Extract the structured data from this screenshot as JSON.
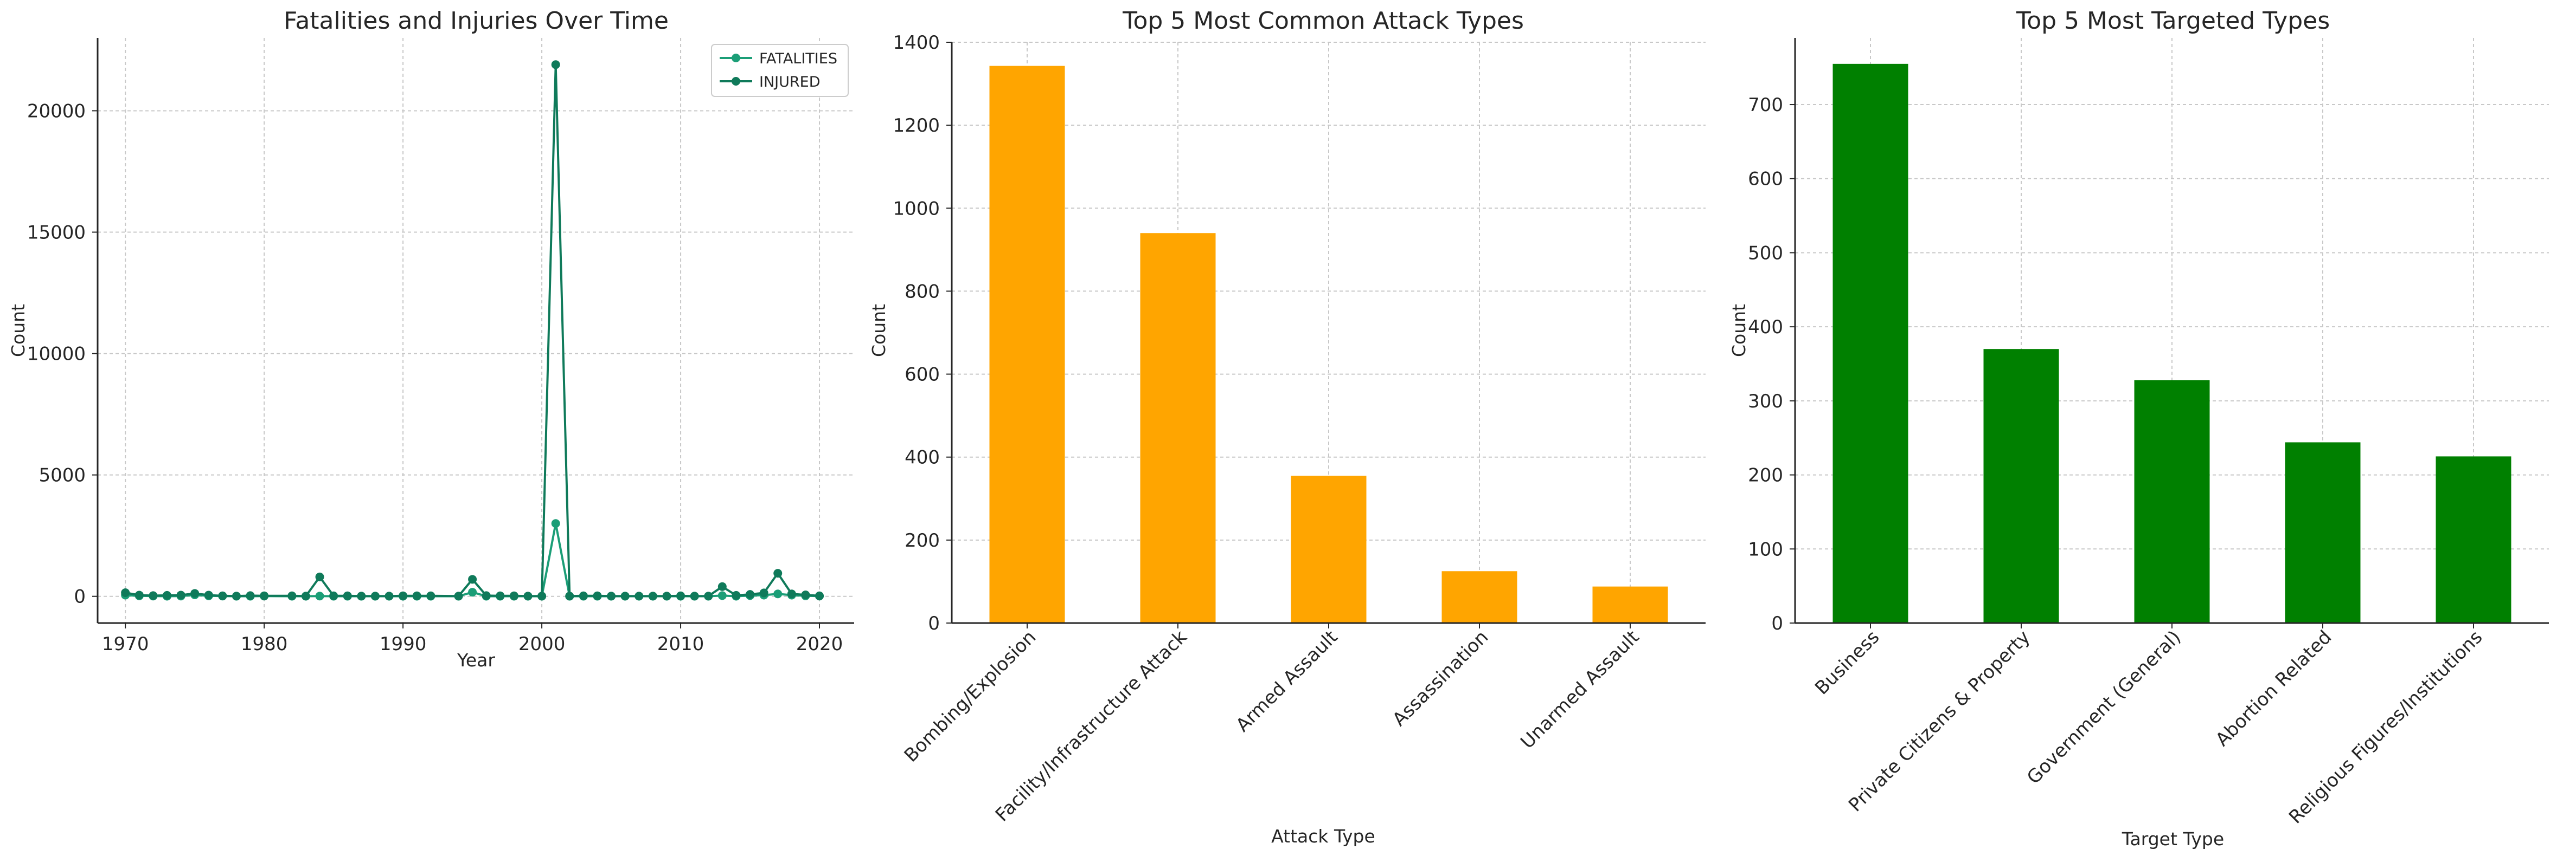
{
  "chart_data": [
    {
      "type": "line",
      "title": "Fatalities and Injuries Over Time",
      "xlabel": "Year",
      "ylabel": "Count",
      "xlim": [
        1968,
        2022.5
      ],
      "ylim": [
        -1100,
        23000
      ],
      "xticks": [
        1970,
        1980,
        1990,
        2000,
        2010,
        2020
      ],
      "yticks": [
        0,
        5000,
        10000,
        15000,
        20000
      ],
      "grid": true,
      "legend": "top-right",
      "x": [
        1970,
        1971,
        1972,
        1973,
        1974,
        1975,
        1976,
        1977,
        1978,
        1979,
        1980,
        1982,
        1983,
        1984,
        1985,
        1986,
        1987,
        1988,
        1989,
        1990,
        1991,
        1992,
        1994,
        1995,
        1996,
        1997,
        1998,
        1999,
        2000,
        2001,
        2002,
        2003,
        2004,
        2005,
        2006,
        2007,
        2008,
        2009,
        2010,
        2011,
        2012,
        2013,
        2014,
        2015,
        2016,
        2017,
        2018,
        2019,
        2020
      ],
      "series": [
        {
          "name": "FATALITIES",
          "color": "#1b9e77",
          "values": [
            50,
            20,
            10,
            5,
            10,
            60,
            20,
            10,
            5,
            5,
            10,
            5,
            5,
            10,
            5,
            5,
            5,
            5,
            5,
            5,
            5,
            5,
            5,
            170,
            5,
            5,
            5,
            5,
            5,
            3000,
            5,
            5,
            5,
            5,
            5,
            5,
            5,
            5,
            5,
            5,
            5,
            30,
            5,
            30,
            50,
            100,
            50,
            20,
            10
          ]
        },
        {
          "name": "INJURED",
          "color": "#0f7a5a",
          "values": [
            150,
            50,
            30,
            40,
            50,
            120,
            50,
            20,
            10,
            30,
            20,
            20,
            10,
            800,
            20,
            20,
            10,
            10,
            10,
            20,
            20,
            20,
            10,
            700,
            30,
            20,
            20,
            10,
            10,
            21900,
            10,
            20,
            20,
            10,
            10,
            10,
            10,
            10,
            20,
            10,
            10,
            400,
            40,
            80,
            140,
            950,
            100,
            60,
            20
          ]
        }
      ]
    },
    {
      "type": "bar",
      "title": "Top 5 Most Common Attack Types",
      "xlabel": "Attack Type",
      "ylabel": "Count",
      "ylim": [
        0,
        1400
      ],
      "yticks": [
        0,
        200,
        400,
        600,
        800,
        1000,
        1200,
        1400
      ],
      "grid": true,
      "color": "#ffa500",
      "categories": [
        "Bombing/Explosion",
        "Facility/Infrastructure Attack",
        "Armed Assault",
        "Assassination",
        "Unarmed Assault"
      ],
      "values": [
        1343,
        940,
        355,
        125,
        88
      ]
    },
    {
      "type": "bar",
      "title": "Top 5 Most Targeted Types",
      "xlabel": "Target Type",
      "ylabel": "Count",
      "ylim": [
        0,
        790
      ],
      "yticks": [
        0,
        100,
        200,
        300,
        400,
        500,
        600,
        700
      ],
      "grid": true,
      "color": "#008000",
      "categories": [
        "Business",
        "Private Citizens & Property",
        "Government (General)",
        "Abortion Related",
        "Religious Figures/Institutions"
      ],
      "values": [
        755,
        370,
        328,
        244,
        225
      ]
    }
  ]
}
